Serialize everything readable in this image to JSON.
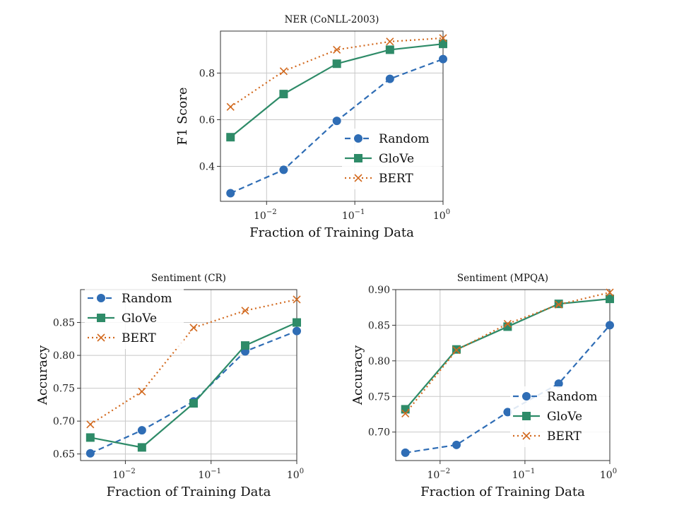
{
  "chart_data": [
    {
      "type": "line",
      "title": "NER (CoNLL-2003)",
      "xlabel": "Fraction of Training Data",
      "ylabel": "F1 Score",
      "xscale": "log",
      "xlim": [
        0.003,
        1.0
      ],
      "ylim": [
        0.25,
        0.98
      ],
      "xticks": [
        0.01,
        0.1,
        1
      ],
      "xtick_labels": [
        {
          "base": "10",
          "exp": "−2"
        },
        {
          "base": "10",
          "exp": "−1"
        },
        {
          "base": "10",
          "exp": "0"
        }
      ],
      "yticks": [
        0.4,
        0.6,
        0.8
      ],
      "ytick_labels": [
        "0.4",
        "0.6",
        "0.8"
      ],
      "grid": true,
      "legend": "lower-right",
      "x": [
        0.0039,
        0.0156,
        0.0625,
        0.25,
        1.0
      ],
      "series": [
        {
          "name": "Random",
          "color": "#2f6db5",
          "marker": "circle",
          "linestyle": "dashed",
          "values": [
            0.285,
            0.385,
            0.595,
            0.775,
            0.86
          ]
        },
        {
          "name": "GloVe",
          "color": "#2e8b68",
          "marker": "square",
          "linestyle": "solid",
          "values": [
            0.525,
            0.71,
            0.84,
            0.9,
            0.925
          ]
        },
        {
          "name": "BERT",
          "color": "#d2691e",
          "marker": "x",
          "linestyle": "dotted",
          "values": [
            0.655,
            0.808,
            0.9,
            0.935,
            0.95
          ]
        }
      ]
    },
    {
      "type": "line",
      "title": "Sentiment (CR)",
      "xlabel": "Fraction of Training Data",
      "ylabel": "Accuracy",
      "xscale": "log",
      "xlim": [
        0.003,
        1.0
      ],
      "ylim": [
        0.64,
        0.9
      ],
      "xticks": [
        0.01,
        0.1,
        1
      ],
      "xtick_labels": [
        {
          "base": "10",
          "exp": "−2"
        },
        {
          "base": "10",
          "exp": "−1"
        },
        {
          "base": "10",
          "exp": "0"
        }
      ],
      "yticks": [
        0.65,
        0.7,
        0.75,
        0.8,
        0.85
      ],
      "ytick_labels": [
        "0.65",
        "0.70",
        "0.75",
        "0.80",
        "0.85"
      ],
      "grid": true,
      "legend": "upper-left",
      "x": [
        0.0039,
        0.0156,
        0.0625,
        0.25,
        1.0
      ],
      "series": [
        {
          "name": "Random",
          "color": "#2f6db5",
          "marker": "circle",
          "linestyle": "dashed",
          "values": [
            0.651,
            0.686,
            0.73,
            0.806,
            0.837
          ]
        },
        {
          "name": "GloVe",
          "color": "#2e8b68",
          "marker": "square",
          "linestyle": "solid",
          "values": [
            0.675,
            0.66,
            0.727,
            0.815,
            0.85
          ]
        },
        {
          "name": "BERT",
          "color": "#d2691e",
          "marker": "x",
          "linestyle": "dotted",
          "values": [
            0.695,
            0.745,
            0.842,
            0.868,
            0.885
          ]
        }
      ]
    },
    {
      "type": "line",
      "title": "Sentiment (MPQA)",
      "xlabel": "Fraction of Training Data",
      "ylabel": "Accuracy",
      "xscale": "log",
      "xlim": [
        0.003,
        1.0
      ],
      "ylim": [
        0.66,
        0.9
      ],
      "xticks": [
        0.01,
        0.1,
        1
      ],
      "xtick_labels": [
        {
          "base": "10",
          "exp": "−2"
        },
        {
          "base": "10",
          "exp": "−1"
        },
        {
          "base": "10",
          "exp": "0"
        }
      ],
      "yticks": [
        0.7,
        0.75,
        0.8,
        0.85,
        0.9
      ],
      "ytick_labels": [
        "0.70",
        "0.75",
        "0.80",
        "0.85",
        "0.90"
      ],
      "grid": true,
      "legend": "lower-right",
      "x": [
        0.0039,
        0.0156,
        0.0625,
        0.25,
        1.0
      ],
      "series": [
        {
          "name": "Random",
          "color": "#2f6db5",
          "marker": "circle",
          "linestyle": "dashed",
          "values": [
            0.671,
            0.682,
            0.728,
            0.768,
            0.85
          ]
        },
        {
          "name": "GloVe",
          "color": "#2e8b68",
          "marker": "square",
          "linestyle": "solid",
          "values": [
            0.732,
            0.816,
            0.848,
            0.88,
            0.887
          ]
        },
        {
          "name": "BERT",
          "color": "#d2691e",
          "marker": "x",
          "linestyle": "dotted",
          "values": [
            0.726,
            0.815,
            0.852,
            0.879,
            0.896
          ]
        }
      ]
    }
  ]
}
